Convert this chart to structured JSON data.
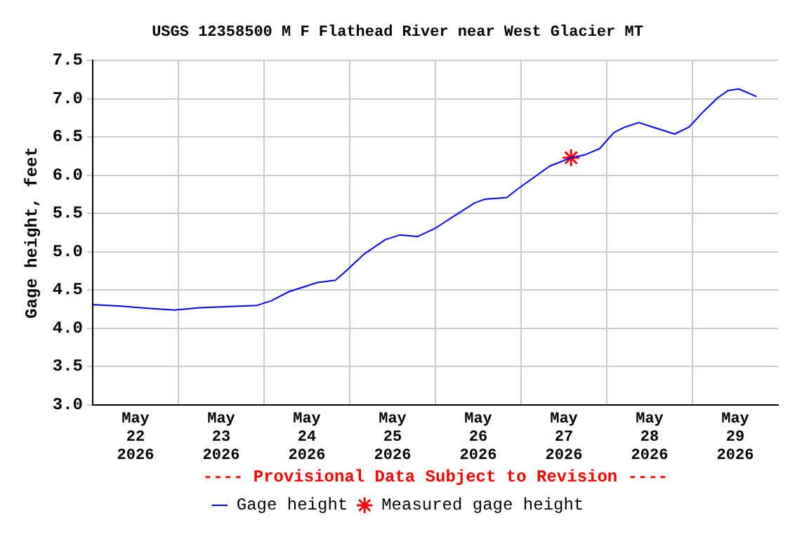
{
  "chart_data": {
    "type": "line",
    "title": "USGS 12358500 M F Flathead River near West Glacier MT",
    "ylabel": "Gage height, feet",
    "annotations": [
      "---- Provisional Data Subject to Revision ----"
    ],
    "xlim": [
      "2026-05-22T00:00",
      "2026-05-30T00:00"
    ],
    "xticks": [
      {
        "value": "2026-05-22T12:00",
        "label": "May\n22\n2026"
      },
      {
        "value": "2026-05-23T00:00",
        "label": null
      },
      {
        "value": "2026-05-23T12:00",
        "label": "May\n23\n2026"
      },
      {
        "value": "2026-05-24T00:00",
        "label": null
      },
      {
        "value": "2026-05-24T12:00",
        "label": "May\n24\n2026"
      },
      {
        "value": "2026-05-25T00:00",
        "label": null
      },
      {
        "value": "2026-05-25T12:00",
        "label": "May\n25\n2026"
      },
      {
        "value": "2026-05-26T00:00",
        "label": null
      },
      {
        "value": "2026-05-26T12:00",
        "label": "May\n26\n2026"
      },
      {
        "value": "2026-05-27T00:00",
        "label": null
      },
      {
        "value": "2026-05-27T12:00",
        "label": "May\n27\n2026"
      },
      {
        "value": "2026-05-28T00:00",
        "label": null
      },
      {
        "value": "2026-05-28T12:00",
        "label": "May\n28\n2026"
      },
      {
        "value": "2026-05-29T00:00",
        "label": null
      },
      {
        "value": "2026-05-29T12:00",
        "label": "May\n29\n2026"
      }
    ],
    "ylim": [
      3,
      7.5
    ],
    "yticks": [
      {
        "value": 3,
        "label": "3.0"
      },
      {
        "value": 3.5,
        "label": "3.5"
      },
      {
        "value": 4,
        "label": "4.0"
      },
      {
        "value": 4.5,
        "label": "4.5"
      },
      {
        "value": 5,
        "label": "5.0"
      },
      {
        "value": 5.5,
        "label": "5.5"
      },
      {
        "value": 6,
        "label": "6.0"
      },
      {
        "value": 6.5,
        "label": "6.5"
      },
      {
        "value": 7,
        "label": "7.0"
      },
      {
        "value": 7.5,
        "label": "7.5"
      }
    ],
    "grid": true,
    "legend": "bottom",
    "series": [
      {
        "name": "Gage height",
        "type": "line",
        "color": "#0000ff",
        "marker": "none",
        "line_style": "solid",
        "x": [
          "2026-05-22T00:00",
          "2026-05-22T08:00",
          "2026-05-22T16:00",
          "2026-05-22T23:00",
          "2026-05-23T06:00",
          "2026-05-23T22:00",
          "2026-05-24T02:00",
          "2026-05-24T07:00",
          "2026-05-24T11:00",
          "2026-05-24T15:00",
          "2026-05-24T20:00",
          "2026-05-24T23:00",
          "2026-05-25T04:00",
          "2026-05-25T10:00",
          "2026-05-25T14:00",
          "2026-05-25T19:00",
          "2026-05-26T00:00",
          "2026-05-26T02:00",
          "2026-05-26T05:00",
          "2026-05-26T11:00",
          "2026-05-26T14:00",
          "2026-05-26T20:00",
          "2026-05-26T23:00",
          "2026-05-27T08:00",
          "2026-05-27T14:00",
          "2026-05-27T18:00",
          "2026-05-27T22:00",
          "2026-05-28T02:00",
          "2026-05-28T05:00",
          "2026-05-28T09:00",
          "2026-05-28T13:00",
          "2026-05-28T19:00",
          "2026-05-28T23:00",
          "2026-05-29T03:00",
          "2026-05-29T07:00",
          "2026-05-29T10:00",
          "2026-05-29T13:00",
          "2026-05-29T18:00"
        ],
        "values": [
          4.31,
          4.29,
          4.26,
          4.24,
          4.27,
          4.3,
          4.36,
          4.48,
          4.54,
          4.6,
          4.63,
          4.75,
          4.97,
          5.16,
          5.22,
          5.2,
          5.31,
          5.37,
          5.46,
          5.64,
          5.69,
          5.71,
          5.82,
          6.12,
          6.23,
          6.27,
          6.35,
          6.56,
          6.63,
          6.69,
          6.63,
          6.54,
          6.63,
          6.83,
          7.01,
          7.11,
          7.13,
          7.03
        ]
      },
      {
        "name": "Measured gage height",
        "type": "scatter",
        "color": "#ff0000",
        "marker": "cross",
        "x": [
          "2026-05-27T14:00"
        ],
        "values": [
          6.23
        ]
      }
    ]
  }
}
